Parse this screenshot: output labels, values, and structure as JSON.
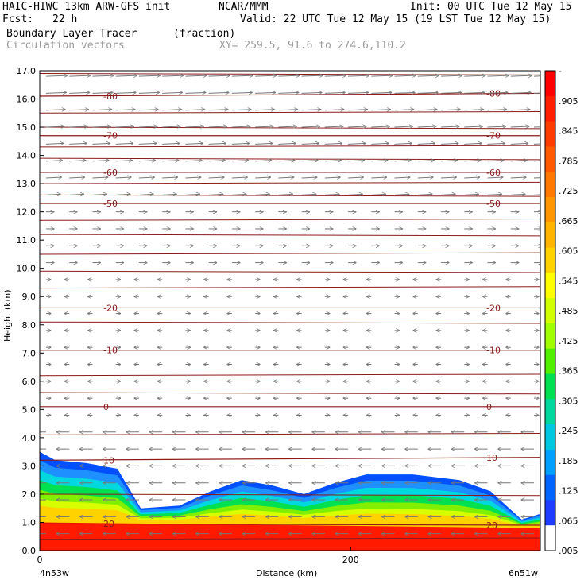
{
  "header": {
    "model": "HAIC-HIWC 13km ARW-GFS init",
    "org": "NCAR/MMM",
    "init": "Init: 00 UTC Tue 12 May 15",
    "fcst_label": "Fcst:",
    "fcst_value": "22 h",
    "valid": "Valid: 22 UTC Tue 12 May 15 (19 LST Tue 12 May 15)",
    "field": "Boundary Layer Tracer",
    "units": "(fraction)",
    "vectors": "Circulation vectors",
    "xy": "XY= 259.5, 91.6 to 274.6,110.2"
  },
  "chart_data": {
    "type": "heatmap",
    "xlabel": "Distance (km)",
    "ylabel": "Height (km)",
    "x_ticks": [
      0,
      200
    ],
    "x_range_km": [
      0,
      322
    ],
    "x_end_labels": {
      "left": "4n53w",
      "right": "6n51w"
    },
    "y_ticks": [
      "0.0",
      "1.0",
      "2.0",
      "3.0",
      "4.0",
      "5.0",
      "6.0",
      "7.0",
      "8.0",
      "9.0",
      "10.0",
      "11.0",
      "12.0",
      "13.0",
      "14.0",
      "15.0",
      "16.0",
      "17.0"
    ],
    "ylim": [
      0,
      17
    ],
    "colorbar_labels": [
      "-",
      ".905",
      ".845",
      ".785",
      ".725",
      ".665",
      ".605",
      ".545",
      ".485",
      ".425",
      ".365",
      ".305",
      ".245",
      ".185",
      ".125",
      ".065",
      ".005"
    ],
    "colorbar_colors": [
      "#ff0000",
      "#ff1e00",
      "#ff3c00",
      "#ff5a00",
      "#ff7800",
      "#ff9600",
      "#ffb400",
      "#ffd200",
      "#ffff00",
      "#d2ff00",
      "#a0ff00",
      "#50f000",
      "#00e050",
      "#00d8a0",
      "#00c8e0",
      "#00a0ff",
      "#0064ff",
      "#1e3cff",
      "#ffffff"
    ],
    "tracer_top_km": [
      [
        0,
        3.5
      ],
      [
        10,
        3.2
      ],
      [
        30,
        3.1
      ],
      [
        50,
        2.9
      ],
      [
        65,
        1.5
      ],
      [
        90,
        1.6
      ],
      [
        110,
        2.1
      ],
      [
        130,
        2.5
      ],
      [
        150,
        2.3
      ],
      [
        170,
        2.0
      ],
      [
        190,
        2.4
      ],
      [
        210,
        2.7
      ],
      [
        240,
        2.7
      ],
      [
        270,
        2.5
      ],
      [
        290,
        2.1
      ],
      [
        310,
        1.1
      ],
      [
        322,
        1.3
      ]
    ],
    "tracer_red_top_km": [
      [
        0,
        1.0
      ],
      [
        322,
        0.8
      ]
    ],
    "isotherms": [
      {
        "label": "-80",
        "y0": 16.1,
        "y1": 16.2
      },
      {
        "label": "-70",
        "y0": 14.7,
        "y1": 14.7
      },
      {
        "label": "-60",
        "y0": 13.4,
        "y1": 13.4
      },
      {
        "label": "-50",
        "y0": 12.3,
        "y1": 12.3
      },
      {
        "label": "-20",
        "y0": 8.6,
        "y1": 8.6
      },
      {
        "label": "-10",
        "y0": 7.1,
        "y1": 7.1
      },
      {
        "label": "0",
        "y0": 5.1,
        "y1": 5.1
      },
      {
        "label": "10",
        "y0": 3.2,
        "y1": 3.3
      },
      {
        "label": "20",
        "y0": 0.95,
        "y1": 0.9
      }
    ],
    "extra_contours_km": [
      16.9,
      15.5,
      15.0,
      14.3,
      13.9,
      13.0,
      12.6,
      11.7,
      11.2,
      10.5,
      9.9,
      9.3,
      8.1,
      6.2,
      5.6,
      4.1,
      2.0,
      0.4
    ],
    "vector_rows_km": [
      0.6,
      1.2,
      1.8,
      2.4,
      3.0,
      3.6,
      4.2,
      4.8,
      5.4,
      6.0,
      6.6,
      7.2,
      7.8,
      8.4,
      9.0,
      9.6,
      10.2,
      10.8,
      11.4,
      12.0,
      12.6,
      13.2,
      13.8,
      14.4,
      15.0,
      15.6,
      16.2,
      16.8
    ]
  }
}
